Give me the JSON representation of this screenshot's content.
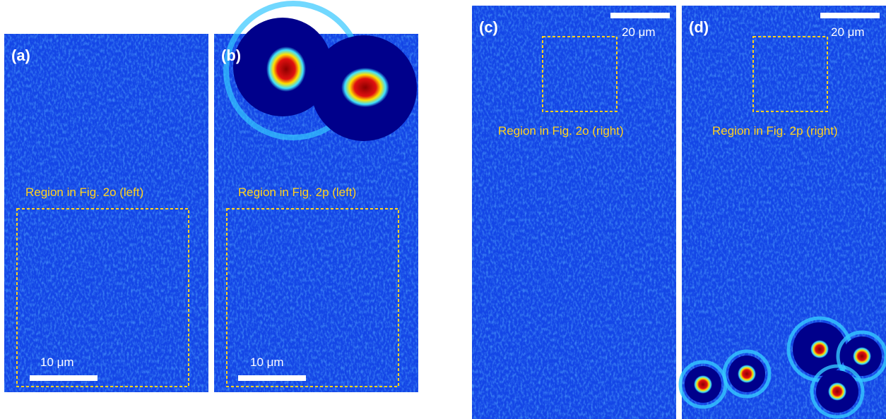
{
  "panels": [
    {
      "label": "(a)",
      "region": "Region in Fig. 2o (left)",
      "scale": "10 μm"
    },
    {
      "label": "(b)",
      "region": "Region in Fig. 2p (left)",
      "scale": "10 μm"
    },
    {
      "label": "(c)",
      "region": "Region in Fig. 2o (right)",
      "scale": "20 μm"
    },
    {
      "label": "(d)",
      "region": "Region in Fig. 2p (right)",
      "scale": "20 μm"
    }
  ]
}
